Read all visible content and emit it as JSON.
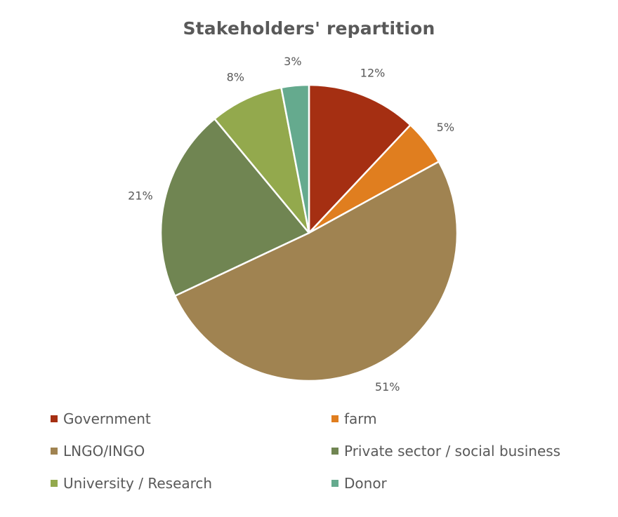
{
  "chart_data": {
    "type": "pie",
    "title": "Stakeholders' repartition",
    "categories": [
      "Government",
      "farm",
      "LNGO/INGO",
      "Private sector / social business",
      "University / Research",
      "Donor"
    ],
    "values": [
      12,
      5,
      51,
      21,
      8,
      3
    ],
    "data_labels": [
      "12%",
      "5%",
      "51%",
      "21%",
      "8%",
      "3%"
    ],
    "colors": [
      "#A52F12",
      "#E07E1F",
      "#A08351",
      "#708552",
      "#93A94D",
      "#65AA8E"
    ],
    "start_angle": "12 o'clock",
    "direction": "clockwise",
    "legend_position": "bottom",
    "slice_border_color": "#ffffff"
  }
}
